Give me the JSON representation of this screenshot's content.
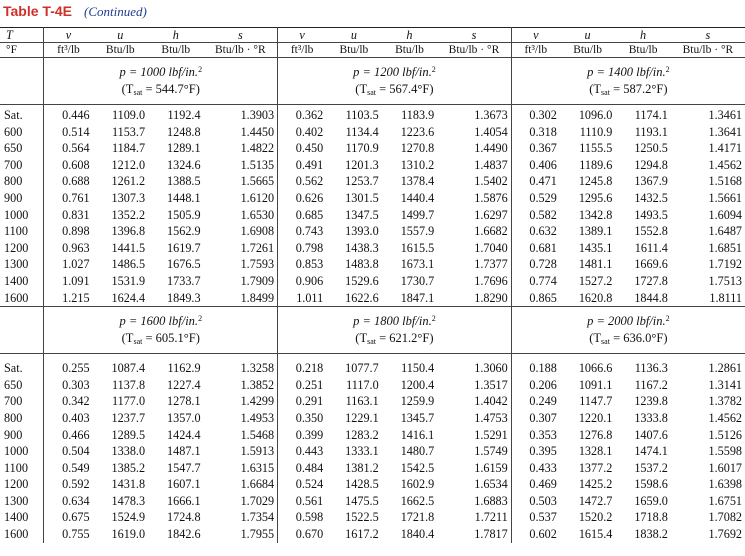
{
  "title": {
    "label": "Table T-4E",
    "continued": "(Continued)"
  },
  "header": {
    "T_symbol": "T",
    "T_unit": "°F",
    "groups": [
      {
        "v": "v",
        "u": "u",
        "h": "h",
        "s": "s",
        "v_unit": "ft³/lb",
        "u_unit": "Btu/lb",
        "h_unit": "Btu/lb",
        "s_unit": "Btu/lb · °R"
      },
      {
        "v": "v",
        "u": "u",
        "h": "h",
        "s": "s",
        "v_unit": "ft³/lb",
        "u_unit": "Btu/lb",
        "h_unit": "Btu/lb",
        "s_unit": "Btu/lb · °R"
      },
      {
        "v": "v",
        "u": "u",
        "h": "h",
        "s": "s",
        "v_unit": "ft³/lb",
        "u_unit": "Btu/lb",
        "h_unit": "Btu/lb",
        "s_unit": "Btu/lb · °R"
      }
    ]
  },
  "blocks": [
    {
      "pressures": [
        {
          "p": "p = 1000 lbf/in.",
          "sup": "2",
          "tsat_pre": "(T",
          "tsat_sub": "sat",
          "tsat_post": " = 544.7°F)"
        },
        {
          "p": "p = 1200 lbf/in.",
          "sup": "2",
          "tsat_pre": "(T",
          "tsat_sub": "sat",
          "tsat_post": " = 567.4°F)"
        },
        {
          "p": "p = 1400 lbf/in.",
          "sup": "2",
          "tsat_pre": "(T",
          "tsat_sub": "sat",
          "tsat_post": " = 587.2°F)"
        }
      ],
      "rows": [
        {
          "T": "Sat.",
          "g": [
            [
              "0.446",
              "1109.0",
              "1192.4",
              "1.3903"
            ],
            [
              "0.362",
              "1103.5",
              "1183.9",
              "1.3673"
            ],
            [
              "0.302",
              "1096.0",
              "1174.1",
              "1.3461"
            ]
          ]
        },
        {
          "T": "600",
          "g": [
            [
              "0.514",
              "1153.7",
              "1248.8",
              "1.4450"
            ],
            [
              "0.402",
              "1134.4",
              "1223.6",
              "1.4054"
            ],
            [
              "0.318",
              "1110.9",
              "1193.1",
              "1.3641"
            ]
          ]
        },
        {
          "T": "650",
          "g": [
            [
              "0.564",
              "1184.7",
              "1289.1",
              "1.4822"
            ],
            [
              "0.450",
              "1170.9",
              "1270.8",
              "1.4490"
            ],
            [
              "0.367",
              "1155.5",
              "1250.5",
              "1.4171"
            ]
          ]
        },
        {
          "T": "700",
          "g": [
            [
              "0.608",
              "1212.0",
              "1324.6",
              "1.5135"
            ],
            [
              "0.491",
              "1201.3",
              "1310.2",
              "1.4837"
            ],
            [
              "0.406",
              "1189.6",
              "1294.8",
              "1.4562"
            ]
          ]
        },
        {
          "T": "800",
          "g": [
            [
              "0.688",
              "1261.2",
              "1388.5",
              "1.5665"
            ],
            [
              "0.562",
              "1253.7",
              "1378.4",
              "1.5402"
            ],
            [
              "0.471",
              "1245.8",
              "1367.9",
              "1.5168"
            ]
          ]
        },
        {
          "T": "900",
          "g": [
            [
              "0.761",
              "1307.3",
              "1448.1",
              "1.6120"
            ],
            [
              "0.626",
              "1301.5",
              "1440.4",
              "1.5876"
            ],
            [
              "0.529",
              "1295.6",
              "1432.5",
              "1.5661"
            ]
          ]
        },
        {
          "T": "1000",
          "g": [
            [
              "0.831",
              "1352.2",
              "1505.9",
              "1.6530"
            ],
            [
              "0.685",
              "1347.5",
              "1499.7",
              "1.6297"
            ],
            [
              "0.582",
              "1342.8",
              "1493.5",
              "1.6094"
            ]
          ]
        },
        {
          "T": "1100",
          "g": [
            [
              "0.898",
              "1396.8",
              "1562.9",
              "1.6908"
            ],
            [
              "0.743",
              "1393.0",
              "1557.9",
              "1.6682"
            ],
            [
              "0.632",
              "1389.1",
              "1552.8",
              "1.6487"
            ]
          ]
        },
        {
          "T": "1200",
          "g": [
            [
              "0.963",
              "1441.5",
              "1619.7",
              "1.7261"
            ],
            [
              "0.798",
              "1438.3",
              "1615.5",
              "1.7040"
            ],
            [
              "0.681",
              "1435.1",
              "1611.4",
              "1.6851"
            ]
          ]
        },
        {
          "T": "1300",
          "g": [
            [
              "1.027",
              "1486.5",
              "1676.5",
              "1.7593"
            ],
            [
              "0.853",
              "1483.8",
              "1673.1",
              "1.7377"
            ],
            [
              "0.728",
              "1481.1",
              "1669.6",
              "1.7192"
            ]
          ]
        },
        {
          "T": "1400",
          "g": [
            [
              "1.091",
              "1531.9",
              "1733.7",
              "1.7909"
            ],
            [
              "0.906",
              "1529.6",
              "1730.7",
              "1.7696"
            ],
            [
              "0.774",
              "1527.2",
              "1727.8",
              "1.7513"
            ]
          ]
        },
        {
          "T": "1600",
          "g": [
            [
              "1.215",
              "1624.4",
              "1849.3",
              "1.8499"
            ],
            [
              "1.011",
              "1622.6",
              "1847.1",
              "1.8290"
            ],
            [
              "0.865",
              "1620.8",
              "1844.8",
              "1.8111"
            ]
          ]
        }
      ]
    },
    {
      "pressures": [
        {
          "p": "p = 1600 lbf/in.",
          "sup": "2",
          "tsat_pre": "(T",
          "tsat_sub": "sat",
          "tsat_post": " = 605.1°F)"
        },
        {
          "p": "p = 1800 lbf/in.",
          "sup": "2",
          "tsat_pre": "(T",
          "tsat_sub": "sat",
          "tsat_post": " = 621.2°F)"
        },
        {
          "p": "p = 2000 lbf/in.",
          "sup": "2",
          "tsat_pre": "(T",
          "tsat_sub": "sat",
          "tsat_post": " = 636.0°F)"
        }
      ],
      "rows": [
        {
          "T": "Sat.",
          "g": [
            [
              "0.255",
              "1087.4",
              "1162.9",
              "1.3258"
            ],
            [
              "0.218",
              "1077.7",
              "1150.4",
              "1.3060"
            ],
            [
              "0.188",
              "1066.6",
              "1136.3",
              "1.2861"
            ]
          ]
        },
        {
          "T": "650",
          "g": [
            [
              "0.303",
              "1137.8",
              "1227.4",
              "1.3852"
            ],
            [
              "0.251",
              "1117.0",
              "1200.4",
              "1.3517"
            ],
            [
              "0.206",
              "1091.1",
              "1167.2",
              "1.3141"
            ]
          ]
        },
        {
          "T": "700",
          "g": [
            [
              "0.342",
              "1177.0",
              "1278.1",
              "1.4299"
            ],
            [
              "0.291",
              "1163.1",
              "1259.9",
              "1.4042"
            ],
            [
              "0.249",
              "1147.7",
              "1239.8",
              "1.3782"
            ]
          ]
        },
        {
          "T": "800",
          "g": [
            [
              "0.403",
              "1237.7",
              "1357.0",
              "1.4953"
            ],
            [
              "0.350",
              "1229.1",
              "1345.7",
              "1.4753"
            ],
            [
              "0.307",
              "1220.1",
              "1333.8",
              "1.4562"
            ]
          ]
        },
        {
          "T": "900",
          "g": [
            [
              "0.466",
              "1289.5",
              "1424.4",
              "1.5468"
            ],
            [
              "0.399",
              "1283.2",
              "1416.1",
              "1.5291"
            ],
            [
              "0.353",
              "1276.8",
              "1407.6",
              "1.5126"
            ]
          ]
        },
        {
          "T": "1000",
          "g": [
            [
              "0.504",
              "1338.0",
              "1487.1",
              "1.5913"
            ],
            [
              "0.443",
              "1333.1",
              "1480.7",
              "1.5749"
            ],
            [
              "0.395",
              "1328.1",
              "1474.1",
              "1.5598"
            ]
          ]
        },
        {
          "T": "1100",
          "g": [
            [
              "0.549",
              "1385.2",
              "1547.7",
              "1.6315"
            ],
            [
              "0.484",
              "1381.2",
              "1542.5",
              "1.6159"
            ],
            [
              "0.433",
              "1377.2",
              "1537.2",
              "1.6017"
            ]
          ]
        },
        {
          "T": "1200",
          "g": [
            [
              "0.592",
              "1431.8",
              "1607.1",
              "1.6684"
            ],
            [
              "0.524",
              "1428.5",
              "1602.9",
              "1.6534"
            ],
            [
              "0.469",
              "1425.2",
              "1598.6",
              "1.6398"
            ]
          ]
        },
        {
          "T": "1300",
          "g": [
            [
              "0.634",
              "1478.3",
              "1666.1",
              "1.7029"
            ],
            [
              "0.561",
              "1475.5",
              "1662.5",
              "1.6883"
            ],
            [
              "0.503",
              "1472.7",
              "1659.0",
              "1.6751"
            ]
          ]
        },
        {
          "T": "1400",
          "g": [
            [
              "0.675",
              "1524.9",
              "1724.8",
              "1.7354"
            ],
            [
              "0.598",
              "1522.5",
              "1721.8",
              "1.7211"
            ],
            [
              "0.537",
              "1520.2",
              "1718.8",
              "1.7082"
            ]
          ]
        },
        {
          "T": "1600",
          "g": [
            [
              "0.755",
              "1619.0",
              "1842.6",
              "1.7955"
            ],
            [
              "0.670",
              "1617.2",
              "1840.4",
              "1.7817"
            ],
            [
              "0.602",
              "1615.4",
              "1838.2",
              "1.7692"
            ]
          ]
        }
      ]
    }
  ]
}
